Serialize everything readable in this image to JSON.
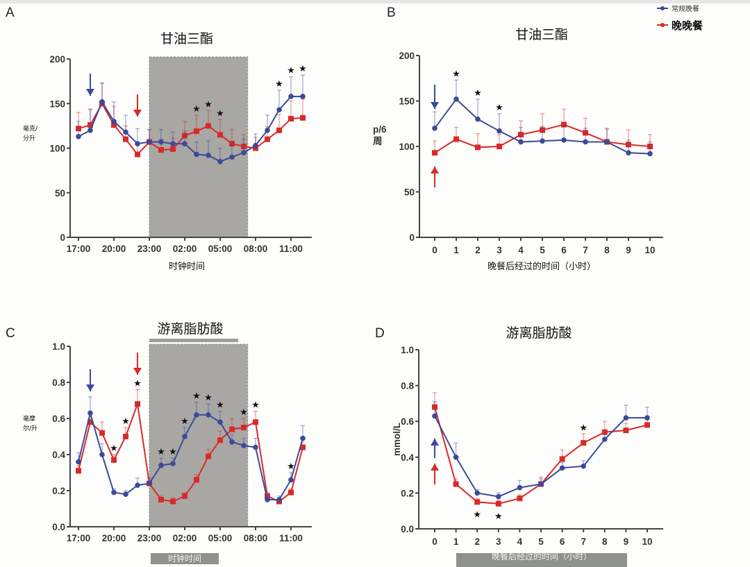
{
  "legend": {
    "series": [
      {
        "name": "常规晚餐",
        "color": "#3c4a99"
      },
      {
        "name": "晚晚餐",
        "color": "#d82a2a"
      }
    ]
  },
  "colors": {
    "regular": "#3c4a99",
    "late": "#d82a2a",
    "shade": "#a9a7a3"
  },
  "chart_data": [
    {
      "panel": "A",
      "type": "line",
      "title": "甘油三酯",
      "xlabel": "时钟时间",
      "ylabel": "毫克/分升",
      "ylabel_lines": [
        "毫克/",
        "分升"
      ],
      "ylim": [
        0,
        200
      ],
      "yticks": [
        0,
        50,
        100,
        150,
        200
      ],
      "xticks": [
        "17:00",
        "20:00",
        "23:00",
        "02:00",
        "05:00",
        "08:00",
        "11:00"
      ],
      "x": [
        "17:00",
        "18:00",
        "19:00",
        "20:00",
        "21:00",
        "22:00",
        "23:00",
        "00:00",
        "01:00",
        "02:00",
        "03:00",
        "04:00",
        "05:00",
        "06:00",
        "07:00",
        "08:00",
        "09:00",
        "10:00",
        "11:00",
        "12:00"
      ],
      "shaded_range": [
        "23:00",
        "07:20"
      ],
      "series": [
        {
          "name": "常规晚餐",
          "values": [
            113,
            120,
            152,
            130,
            118,
            105,
            107,
            107,
            105,
            105,
            93,
            92,
            85,
            90,
            95,
            103,
            120,
            143,
            158,
            158
          ],
          "errors": [
            17,
            23,
            21,
            22,
            19,
            17,
            14,
            14,
            13,
            14,
            14,
            16,
            15,
            15,
            15,
            13,
            17,
            22,
            22,
            24
          ]
        },
        {
          "name": "晚晚餐",
          "values": [
            122,
            126,
            150,
            126,
            110,
            93,
            107,
            98,
            99,
            114,
            119,
            125,
            115,
            105,
            102,
            100,
            110,
            120,
            133,
            134
          ],
          "errors": [
            18,
            18,
            23,
            21,
            15,
            14,
            14,
            12,
            12,
            16,
            18,
            17,
            17,
            16,
            13,
            12,
            14,
            18,
            20,
            21
          ]
        }
      ],
      "meal_arrows": [
        {
          "series": "常规晚餐",
          "x": "18:00",
          "direction": "down"
        },
        {
          "series": "晚晚餐",
          "x": "22:00",
          "direction": "down"
        }
      ],
      "significance": [
        "03:00",
        "04:00",
        "05:00",
        "10:00",
        "11:00",
        "12:00"
      ]
    },
    {
      "panel": "B",
      "type": "line",
      "title": "甘油三酯",
      "xlabel": "晚餐后经过的时间（小时）",
      "ylabel": "p/6 周",
      "ylabel_lines": [
        "p/6",
        "周"
      ],
      "ylim": [
        0,
        200
      ],
      "yticks": [
        0,
        50,
        100,
        150,
        200
      ],
      "x": [
        0,
        1,
        2,
        3,
        4,
        5,
        6,
        7,
        8,
        9,
        10
      ],
      "series": [
        {
          "name": "常规晚餐",
          "values": [
            120,
            152,
            130,
            117,
            105,
            106,
            107,
            105,
            105,
            93,
            92
          ],
          "errors": [
            18,
            21,
            22,
            19,
            16,
            16,
            16,
            15,
            14,
            14,
            13
          ]
        },
        {
          "name": "晚晚餐",
          "values": [
            93,
            108,
            99,
            100,
            113,
            118,
            124,
            115,
            105,
            102,
            100
          ],
          "errors": [
            13,
            13,
            15,
            13,
            15,
            18,
            17,
            16,
            15,
            16,
            13
          ]
        }
      ],
      "meal_arrows": [
        {
          "series": "常规晚餐",
          "x": 0,
          "direction": "down"
        },
        {
          "series": "晚晚餐",
          "x": 0,
          "direction": "up"
        }
      ],
      "significance": [
        1,
        2,
        3
      ]
    },
    {
      "panel": "C",
      "type": "line",
      "title": "游离脂肪酸",
      "xlabel": "时钟时间",
      "ylabel": "毫摩尔/升",
      "ylabel_lines": [
        "毫摩",
        "尔/升"
      ],
      "ylim": [
        0,
        1.0
      ],
      "yticks": [
        0.0,
        0.2,
        0.4,
        0.6,
        0.8,
        1.0
      ],
      "xticks": [
        "17:00",
        "20:00",
        "23:00",
        "02:00",
        "05:00",
        "08:00",
        "11:00"
      ],
      "x": [
        "17:00",
        "18:00",
        "19:00",
        "20:00",
        "21:00",
        "22:00",
        "23:00",
        "00:00",
        "01:00",
        "02:00",
        "03:00",
        "04:00",
        "05:00",
        "06:00",
        "07:00",
        "08:00",
        "09:00",
        "10:00",
        "11:00",
        "12:00"
      ],
      "shaded_range": [
        "23:00",
        "07:20"
      ],
      "series": [
        {
          "name": "常规晚餐",
          "values": [
            0.36,
            0.63,
            0.4,
            0.19,
            0.18,
            0.23,
            0.24,
            0.34,
            0.35,
            0.5,
            0.62,
            0.62,
            0.58,
            0.47,
            0.45,
            0.44,
            0.15,
            0.15,
            0.26,
            0.49
          ],
          "errors": [
            0.05,
            0.09,
            0.06,
            0.02,
            0.02,
            0.04,
            0.03,
            0.04,
            0.03,
            0.05,
            0.07,
            0.06,
            0.06,
            0.04,
            0.04,
            0.05,
            0.02,
            0.02,
            0.04,
            0.07
          ]
        },
        {
          "name": "晚晚餐",
          "values": [
            0.31,
            0.58,
            0.52,
            0.37,
            0.5,
            0.68,
            0.24,
            0.15,
            0.14,
            0.17,
            0.26,
            0.39,
            0.48,
            0.54,
            0.55,
            0.58,
            0.17,
            0.14,
            0.19,
            0.44
          ],
          "errors": [
            0.03,
            0.05,
            0.06,
            0.03,
            0.05,
            0.08,
            0.03,
            0.02,
            0.02,
            0.02,
            0.03,
            0.04,
            0.05,
            0.06,
            0.05,
            0.06,
            0.02,
            0.02,
            0.02,
            0.05
          ]
        }
      ],
      "meal_arrows": [
        {
          "series": "常规晚餐",
          "x": "18:00",
          "direction": "down"
        },
        {
          "series": "晚晚餐",
          "x": "22:00",
          "direction": "down"
        }
      ],
      "significance": [
        "20:00",
        "21:00",
        "22:00",
        "00:00",
        "01:00",
        "02:00",
        "03:00",
        "04:00",
        "05:00",
        "07:00",
        "08:00",
        "11:00"
      ]
    },
    {
      "panel": "D",
      "type": "line",
      "title": "游离脂肪酸",
      "xlabel": "晚餐后经过的时间（小时）",
      "ylabel": "mmol/L",
      "ylim": [
        0,
        1.0
      ],
      "yticks": [
        0.0,
        0.2,
        0.4,
        0.6,
        0.8,
        1.0
      ],
      "x": [
        0,
        1,
        2,
        3,
        4,
        5,
        6,
        7,
        8,
        9,
        10
      ],
      "series": [
        {
          "name": "常规晚餐",
          "values": [
            0.63,
            0.4,
            0.2,
            0.18,
            0.23,
            0.25,
            0.34,
            0.35,
            0.5,
            0.62,
            0.62
          ],
          "errors": [
            0.08,
            0.08,
            0.02,
            0.02,
            0.04,
            0.03,
            0.03,
            0.03,
            0.03,
            0.07,
            0.06
          ]
        },
        {
          "name": "晚晚餐",
          "values": [
            0.68,
            0.25,
            0.15,
            0.14,
            0.17,
            0.25,
            0.39,
            0.48,
            0.54,
            0.55,
            0.58
          ],
          "errors": [
            0.08,
            0.03,
            0.02,
            0.02,
            0.02,
            0.04,
            0.05,
            0.05,
            0.06,
            0.04,
            0.03
          ]
        }
      ],
      "meal_arrows": [
        {
          "series": "常规晚餐",
          "x": 0,
          "direction": "up"
        },
        {
          "series": "晚晚餐",
          "x": 0,
          "direction": "up"
        }
      ],
      "significance": [
        2,
        3,
        7
      ],
      "significance_below": [
        2,
        3
      ]
    }
  ]
}
